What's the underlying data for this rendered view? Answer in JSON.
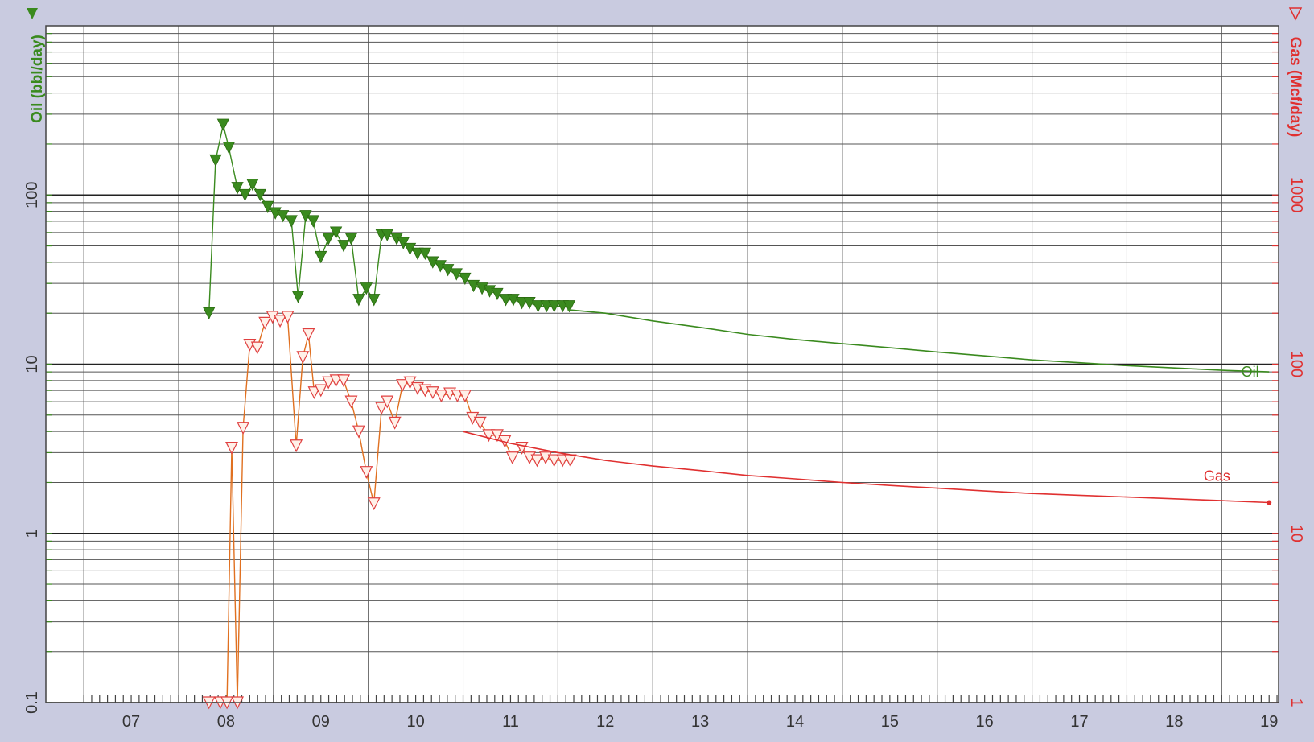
{
  "chart_data": {
    "type": "line",
    "x_axis": {
      "scale": "time",
      "tick_labels": [
        "07",
        "08",
        "09",
        "10",
        "11",
        "12",
        "13",
        "14",
        "15",
        "16",
        "17",
        "18",
        "19"
      ],
      "range": [
        2006.6,
        2019.6
      ]
    },
    "y_left": {
      "label": "Oil (bbl/day)",
      "scale": "log",
      "range": [
        0.1,
        1000
      ],
      "tick_labels": [
        "0.1",
        "1",
        "10",
        "100"
      ],
      "tick_values": [
        0.1,
        1,
        10,
        100
      ],
      "color": "#3a8a1e"
    },
    "y_right": {
      "label": "Gas (Mcf/day)",
      "scale": "log",
      "range": [
        1,
        10000
      ],
      "tick_labels": [
        "1",
        "10",
        "100",
        "1000"
      ],
      "tick_values": [
        1,
        10,
        100,
        1000
      ],
      "color": "#e03030"
    },
    "grid": true,
    "series": [
      {
        "name": "Oil",
        "axis": "left",
        "kind": "history",
        "marker": "filled-triangle-down",
        "color": "#3a8a1e",
        "x": [
          2008.32,
          2008.39,
          2008.47,
          2008.53,
          2008.62,
          2008.7,
          2008.78,
          2008.86,
          2008.94,
          2009.02,
          2009.1,
          2009.19,
          2009.26,
          2009.34,
          2009.42,
          2009.5,
          2009.58,
          2009.66,
          2009.74,
          2009.82,
          2009.9,
          2009.98,
          2010.06,
          2010.14,
          2010.2,
          2010.3,
          2010.37,
          2010.44,
          2010.52,
          2010.6,
          2010.68,
          2010.76,
          2010.84,
          2010.93,
          2011.02,
          2011.11,
          2011.2,
          2011.28,
          2011.36,
          2011.45,
          2011.53,
          2011.62,
          2011.7,
          2011.79,
          2011.88,
          2011.96,
          2012.05,
          2012.12
        ],
        "y": [
          20,
          160,
          260,
          190,
          110,
          100,
          115,
          100,
          85,
          78,
          75,
          70,
          25,
          75,
          70,
          43,
          55,
          60,
          50,
          55,
          24,
          28,
          24,
          58,
          58,
          55,
          52,
          48,
          45,
          45,
          40,
          38,
          36,
          34,
          32,
          29,
          28,
          27,
          26,
          24,
          24,
          23,
          23,
          22,
          22,
          22,
          22,
          22
        ]
      },
      {
        "name": "Oil",
        "axis": "left",
        "kind": "forecast",
        "color": "#3a8a1e",
        "x": [
          2012.1,
          2012.5,
          2013.0,
          2013.5,
          2014.0,
          2014.5,
          2015.0,
          2015.5,
          2016.0,
          2016.5,
          2017.0,
          2017.5,
          2018.0,
          2018.5,
          2019.0,
          2019.5
        ],
        "y": [
          21,
          20,
          18,
          16.5,
          15,
          14,
          13.2,
          12.5,
          11.8,
          11.2,
          10.6,
          10.2,
          9.8,
          9.5,
          9.2,
          9.0
        ]
      },
      {
        "name": "Gas",
        "axis": "right",
        "kind": "history",
        "marker": "hollow-triangle-down",
        "color": "#e07020",
        "x": [
          2008.32,
          2008.44,
          2008.51,
          2008.56,
          2008.62,
          2008.68,
          2008.75,
          2008.83,
          2008.91,
          2008.99,
          2009.07,
          2009.15,
          2009.24,
          2009.31,
          2009.37,
          2009.43,
          2009.5,
          2009.58,
          2009.66,
          2009.74,
          2009.82,
          2009.9,
          2009.98,
          2010.06,
          2010.14,
          2010.2,
          2010.28,
          2010.36,
          2010.44,
          2010.52,
          2010.6,
          2010.68,
          2010.77,
          2010.86,
          2010.94,
          2011.02,
          2011.1,
          2011.18,
          2011.27,
          2011.36,
          2011.44,
          2011.52,
          2011.62,
          2011.7,
          2011.78,
          2011.87,
          2011.96,
          2012.05,
          2012.13
        ],
        "y": [
          1,
          1,
          1,
          32,
          1,
          42,
          130,
          125,
          175,
          190,
          180,
          190,
          33,
          110,
          150,
          68,
          70,
          78,
          80,
          80,
          60,
          40,
          23,
          15,
          55,
          60,
          45,
          75,
          78,
          72,
          70,
          68,
          65,
          67,
          65,
          65,
          48,
          45,
          38,
          38,
          35,
          28,
          32,
          28,
          27,
          28,
          27,
          27,
          27
        ]
      },
      {
        "name": "Gas",
        "axis": "right",
        "kind": "forecast",
        "color": "#e03030",
        "x": [
          2011.0,
          2011.5,
          2012.0,
          2012.5,
          2013.0,
          2013.5,
          2014.0,
          2014.5,
          2015.0,
          2015.5,
          2016.0,
          2016.5,
          2017.0,
          2017.5,
          2018.0,
          2018.5,
          2019.0,
          2019.5
        ],
        "y": [
          40,
          34,
          30,
          27,
          25,
          23.5,
          22,
          21,
          20,
          19.2,
          18.5,
          17.8,
          17.2,
          16.8,
          16.4,
          16,
          15.6,
          15.2
        ]
      }
    ],
    "annotations": [
      {
        "text": "Oil",
        "x": 2019.3,
        "y": 9,
        "axis": "left",
        "color": "#3a8a1e"
      },
      {
        "text": "Gas",
        "x": 2018.95,
        "y": 17.5,
        "axis": "right",
        "color": "#e03030"
      }
    ]
  }
}
